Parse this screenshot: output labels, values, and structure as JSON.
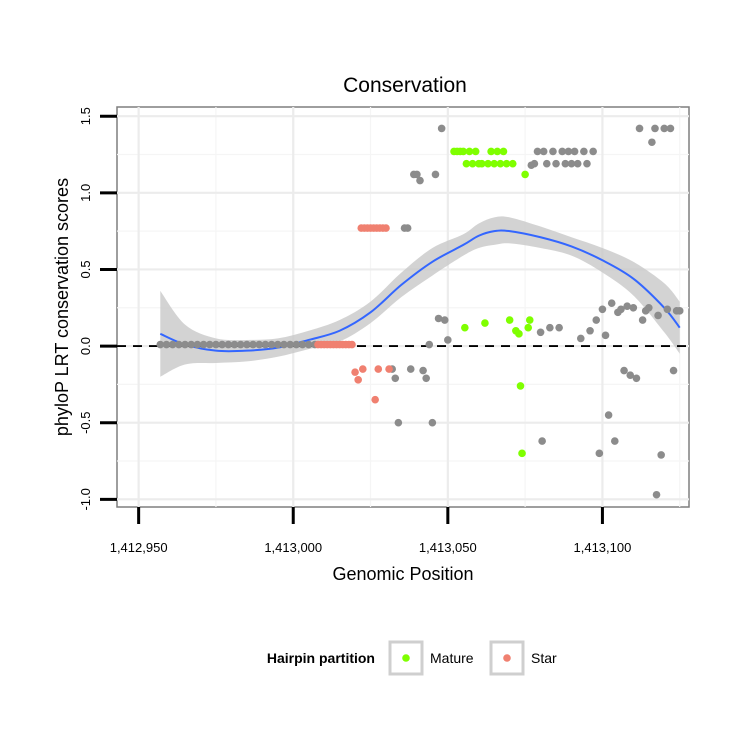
{
  "chart_data": {
    "type": "scatter",
    "title": "Conservation",
    "xlabel": "Genomic Position",
    "ylabel": "phyloP LRT conservation scores",
    "xlim": [
      1412943,
      1413128
    ],
    "ylim": [
      -1.05,
      1.56
    ],
    "x_ticks": [
      1412950,
      1413000,
      1413050,
      1413100
    ],
    "x_tick_labels": [
      "1,412,950",
      "1,413,000",
      "1,413,050",
      "1,413,100"
    ],
    "y_ticks": [
      -1.0,
      -0.5,
      0.0,
      0.5,
      1.0,
      1.5
    ],
    "y_tick_labels": [
      "-1.0",
      "-0.5",
      "0.0",
      "0.5",
      "1.0",
      "1.5"
    ],
    "reference_line": {
      "y": 0.0,
      "style": "dashed"
    },
    "grid": true,
    "legend": {
      "title": "Hairpin partition",
      "placement": "bottom",
      "entries": [
        {
          "label": "Mature",
          "color": "#7fff00"
        },
        {
          "label": "Star",
          "color": "#f08070"
        }
      ]
    },
    "colors": {
      "other": "#8c8c8c",
      "Mature": "#7fff00",
      "Star": "#f08070",
      "smooth": "#3366ff",
      "ribbon": "#c8c8c8",
      "panel_border": "#7f7f7f"
    },
    "series": [
      {
        "name": "Other",
        "points": [
          [
            1412957,
            0.01
          ],
          [
            1412959,
            0.01
          ],
          [
            1412961,
            0.01
          ],
          [
            1412963,
            0.01
          ],
          [
            1412965,
            0.01
          ],
          [
            1412967,
            0.01
          ],
          [
            1412969,
            0.01
          ],
          [
            1412971,
            0.01
          ],
          [
            1412973,
            0.01
          ],
          [
            1412975,
            0.01
          ],
          [
            1412977,
            0.01
          ],
          [
            1412979,
            0.01
          ],
          [
            1412981,
            0.01
          ],
          [
            1412983,
            0.01
          ],
          [
            1412985,
            0.01
          ],
          [
            1412987,
            0.01
          ],
          [
            1412989,
            0.01
          ],
          [
            1412991,
            0.01
          ],
          [
            1412993,
            0.01
          ],
          [
            1412995,
            0.01
          ],
          [
            1412997,
            0.01
          ],
          [
            1412999,
            0.01
          ],
          [
            1413001,
            0.01
          ],
          [
            1413003,
            0.01
          ],
          [
            1413005,
            0.01
          ],
          [
            1413007,
            0.01
          ],
          [
            1413032,
            -0.15
          ],
          [
            1413033,
            -0.21
          ],
          [
            1413034,
            -0.5
          ],
          [
            1413036,
            0.77
          ],
          [
            1413037,
            0.77
          ],
          [
            1413038,
            -0.15
          ],
          [
            1413039,
            1.12
          ],
          [
            1413040,
            1.12
          ],
          [
            1413041,
            1.08
          ],
          [
            1413042,
            -0.16
          ],
          [
            1413043,
            -0.21
          ],
          [
            1413044,
            0.01
          ],
          [
            1413045,
            -0.5
          ],
          [
            1413046,
            1.12
          ],
          [
            1413047,
            0.18
          ],
          [
            1413048,
            1.42
          ],
          [
            1413049,
            0.17
          ],
          [
            1413050,
            0.04
          ],
          [
            1413077,
            1.18
          ],
          [
            1413078,
            1.19
          ],
          [
            1413079,
            1.27
          ],
          [
            1413080,
            0.09
          ],
          [
            1413080.5,
            -0.62
          ],
          [
            1413081,
            1.27
          ],
          [
            1413082,
            1.19
          ],
          [
            1413083,
            0.12
          ],
          [
            1413084,
            1.27
          ],
          [
            1413085,
            1.19
          ],
          [
            1413086,
            0.12
          ],
          [
            1413087,
            1.27
          ],
          [
            1413088,
            1.19
          ],
          [
            1413089,
            1.27
          ],
          [
            1413090,
            1.19
          ],
          [
            1413091,
            1.27
          ],
          [
            1413092,
            1.19
          ],
          [
            1413093,
            0.05
          ],
          [
            1413094,
            1.27
          ],
          [
            1413095,
            1.19
          ],
          [
            1413096,
            0.1
          ],
          [
            1413097,
            1.27
          ],
          [
            1413098,
            0.17
          ],
          [
            1413099,
            -0.7
          ],
          [
            1413100,
            0.24
          ],
          [
            1413101,
            0.07
          ],
          [
            1413102,
            -0.45
          ],
          [
            1413103,
            0.28
          ],
          [
            1413104,
            -0.62
          ],
          [
            1413105,
            0.22
          ],
          [
            1413106,
            0.24
          ],
          [
            1413107,
            -0.16
          ],
          [
            1413108,
            0.26
          ],
          [
            1413109,
            -0.19
          ],
          [
            1413110,
            0.25
          ],
          [
            1413111,
            -0.21
          ],
          [
            1413112,
            1.42
          ],
          [
            1413113,
            0.17
          ],
          [
            1413114,
            0.23
          ],
          [
            1413115,
            0.25
          ],
          [
            1413116,
            1.33
          ],
          [
            1413117,
            1.42
          ],
          [
            1413117.5,
            -0.97
          ],
          [
            1413118,
            0.2
          ],
          [
            1413119,
            -0.71
          ],
          [
            1413120,
            1.42
          ],
          [
            1413121,
            0.24
          ],
          [
            1413122,
            1.42
          ],
          [
            1413123,
            -0.16
          ],
          [
            1413124,
            0.23
          ],
          [
            1413125,
            0.23
          ]
        ]
      },
      {
        "name": "Star",
        "points": [
          [
            1413008,
            0.01
          ],
          [
            1413009,
            0.01
          ],
          [
            1413010,
            0.01
          ],
          [
            1413011,
            0.01
          ],
          [
            1413012,
            0.01
          ],
          [
            1413013,
            0.01
          ],
          [
            1413014,
            0.01
          ],
          [
            1413015,
            0.01
          ],
          [
            1413016,
            0.01
          ],
          [
            1413017,
            0.01
          ],
          [
            1413018,
            0.01
          ],
          [
            1413019,
            0.01
          ],
          [
            1413020,
            -0.17
          ],
          [
            1413021,
            -0.22
          ],
          [
            1413022,
            0.77
          ],
          [
            1413022.5,
            -0.15
          ],
          [
            1413023,
            0.77
          ],
          [
            1413024,
            0.77
          ],
          [
            1413025,
            0.77
          ],
          [
            1413026,
            0.77
          ],
          [
            1413026.5,
            -0.35
          ],
          [
            1413027,
            0.77
          ],
          [
            1413027.5,
            -0.15
          ],
          [
            1413028,
            0.77
          ],
          [
            1413029,
            0.77
          ],
          [
            1413030,
            0.77
          ],
          [
            1413031,
            -0.15
          ]
        ]
      },
      {
        "name": "Mature",
        "points": [
          [
            1413052,
            1.27
          ],
          [
            1413053,
            1.27
          ],
          [
            1413054,
            1.27
          ],
          [
            1413055,
            1.27
          ],
          [
            1413055.5,
            0.12
          ],
          [
            1413056,
            1.19
          ],
          [
            1413057,
            1.27
          ],
          [
            1413058,
            1.19
          ],
          [
            1413059,
            1.27
          ],
          [
            1413060,
            1.19
          ],
          [
            1413061,
            1.19
          ],
          [
            1413062,
            0.15
          ],
          [
            1413063,
            1.19
          ],
          [
            1413064,
            1.27
          ],
          [
            1413065,
            1.19
          ],
          [
            1413066,
            1.27
          ],
          [
            1413067,
            1.19
          ],
          [
            1413068,
            1.27
          ],
          [
            1413069,
            1.19
          ],
          [
            1413070,
            0.17
          ],
          [
            1413071,
            1.19
          ],
          [
            1413072,
            0.1
          ],
          [
            1413073,
            0.08
          ],
          [
            1413073.5,
            -0.26
          ],
          [
            1413074,
            -0.7
          ],
          [
            1413075,
            1.12
          ],
          [
            1413076,
            0.12
          ],
          [
            1413076.5,
            0.17
          ]
        ]
      }
    ],
    "smooth": {
      "x": [
        1412957,
        1412965,
        1412975,
        1412985,
        1412995,
        1413005,
        1413015,
        1413025,
        1413035,
        1413045,
        1413055,
        1413060,
        1413065,
        1413070,
        1413080,
        1413090,
        1413100,
        1413110,
        1413120,
        1413125
      ],
      "y": [
        0.08,
        0.01,
        -0.03,
        -0.03,
        -0.01,
        0.04,
        0.1,
        0.22,
        0.4,
        0.55,
        0.66,
        0.72,
        0.75,
        0.75,
        0.71,
        0.65,
        0.56,
        0.44,
        0.25,
        0.12
      ],
      "lo": [
        -0.2,
        -0.12,
        -0.11,
        -0.1,
        -0.07,
        -0.02,
        0.03,
        0.15,
        0.32,
        0.46,
        0.59,
        0.64,
        0.66,
        0.67,
        0.64,
        0.59,
        0.48,
        0.33,
        0.09,
        -0.05
      ],
      "hi": [
        0.36,
        0.14,
        0.05,
        0.04,
        0.05,
        0.1,
        0.17,
        0.29,
        0.48,
        0.64,
        0.73,
        0.8,
        0.84,
        0.84,
        0.78,
        0.71,
        0.64,
        0.55,
        0.41,
        0.29
      ]
    }
  }
}
